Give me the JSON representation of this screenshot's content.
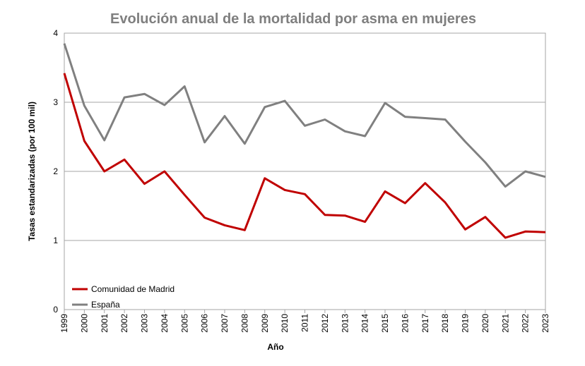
{
  "chart_data": {
    "type": "line",
    "title": "Evolución anual de la mortalidad por asma en mujeres",
    "xlabel": "Año",
    "ylabel": "Tasas estandarizadas (por 100 mil)",
    "ylim": [
      0,
      4
    ],
    "yticks": [
      "0",
      "1",
      "2",
      "3",
      "4"
    ],
    "grid": true,
    "legend": "bottom-left",
    "x": [
      "1999",
      "2000",
      "2001",
      "2002",
      "2003",
      "2004",
      "2005",
      "2006",
      "2007",
      "2008",
      "2009",
      "2010",
      "2011",
      "2012",
      "2013",
      "2014",
      "2015",
      "2016",
      "2017",
      "2018",
      "2019",
      "2020",
      "2021",
      "2022",
      "2023"
    ],
    "series": [
      {
        "name": "Comunidad de Madrid",
        "color": "#c00000",
        "values": [
          3.42,
          2.44,
          2.0,
          2.17,
          1.82,
          2.0,
          1.66,
          1.33,
          1.22,
          1.15,
          1.9,
          1.73,
          1.67,
          1.37,
          1.36,
          1.27,
          1.71,
          1.54,
          1.83,
          1.55,
          1.16,
          1.34,
          1.04,
          1.13,
          1.12
        ]
      },
      {
        "name": "España",
        "color": "#808080",
        "values": [
          3.85,
          2.95,
          2.45,
          3.07,
          3.12,
          2.96,
          3.23,
          2.42,
          2.8,
          2.4,
          2.93,
          3.02,
          2.66,
          2.75,
          2.58,
          2.51,
          2.99,
          2.79,
          2.77,
          2.75,
          2.43,
          2.13,
          1.78,
          2.0,
          1.92
        ]
      }
    ]
  }
}
